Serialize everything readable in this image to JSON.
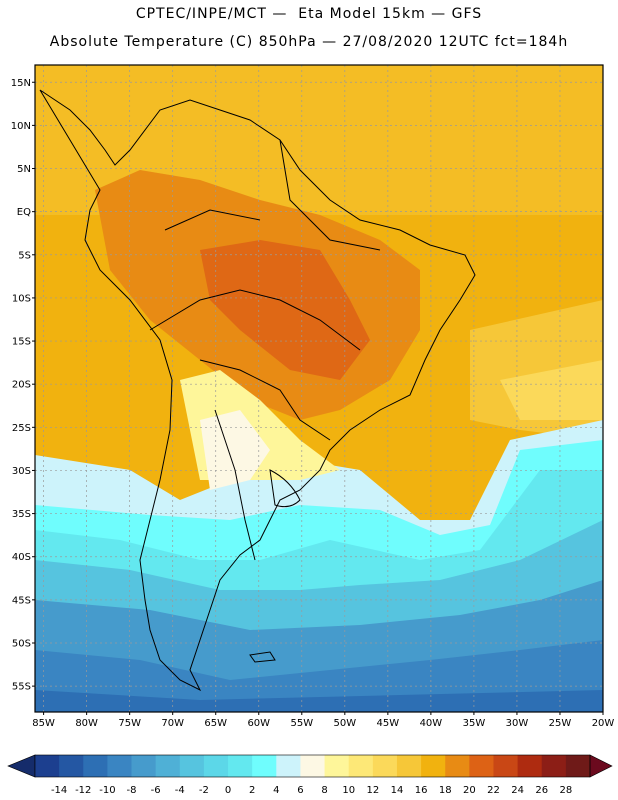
{
  "header": {
    "line1": "CPTEC/INPE/MCT —  Eta Model 15km — GFS",
    "line2": "Absolute Temperature (C) 850hPa — 27/08/2020 12UTC fct=184h"
  },
  "map": {
    "lon_range": [
      -86,
      -20
    ],
    "lat_range": [
      -58,
      17
    ],
    "lat_labels": [
      "15N",
      "10N",
      "5N",
      "EQ",
      "5S",
      "10S",
      "15S",
      "20S",
      "25S",
      "30S",
      "35S",
      "40S",
      "45S",
      "50S",
      "55S"
    ],
    "lat_values": [
      15,
      10,
      5,
      0,
      -5,
      -10,
      -15,
      -20,
      -25,
      -30,
      -35,
      -40,
      -45,
      -50,
      -55
    ],
    "lon_labels": [
      "85W",
      "80W",
      "75W",
      "70W",
      "65W",
      "60W",
      "55W",
      "50W",
      "45W",
      "40W",
      "35W",
      "30W",
      "25W",
      "20W"
    ],
    "lon_values": [
      -85,
      -80,
      -75,
      -70,
      -65,
      -60,
      -55,
      -50,
      -45,
      -40,
      -35,
      -30,
      -25,
      -20
    ]
  },
  "colorbar": {
    "labels": [
      "-14",
      "-12",
      "-10",
      "-8",
      "-6",
      "-4",
      "-2",
      "0",
      "2",
      "4",
      "6",
      "8",
      "10",
      "12",
      "14",
      "16",
      "18",
      "20",
      "22",
      "24",
      "26",
      "28"
    ],
    "colors": [
      "#1c3f8f",
      "#2457a3",
      "#2d6fb4",
      "#3a85c2",
      "#469bcc",
      "#4fb0d6",
      "#56c4df",
      "#5cd7e8",
      "#63e8ef",
      "#6ffdfd",
      "#cdf3fb",
      "#fdf8e4",
      "#fef69a",
      "#fde877",
      "#fbd95a",
      "#f6c738",
      "#f1b20f",
      "#e88b14",
      "#dd6215",
      "#c94715",
      "#ae2b10",
      "#8c1e16",
      "#6f1a18"
    ],
    "arrow_left": "#152c6b",
    "arrow_right": "#6b0a1e"
  }
}
